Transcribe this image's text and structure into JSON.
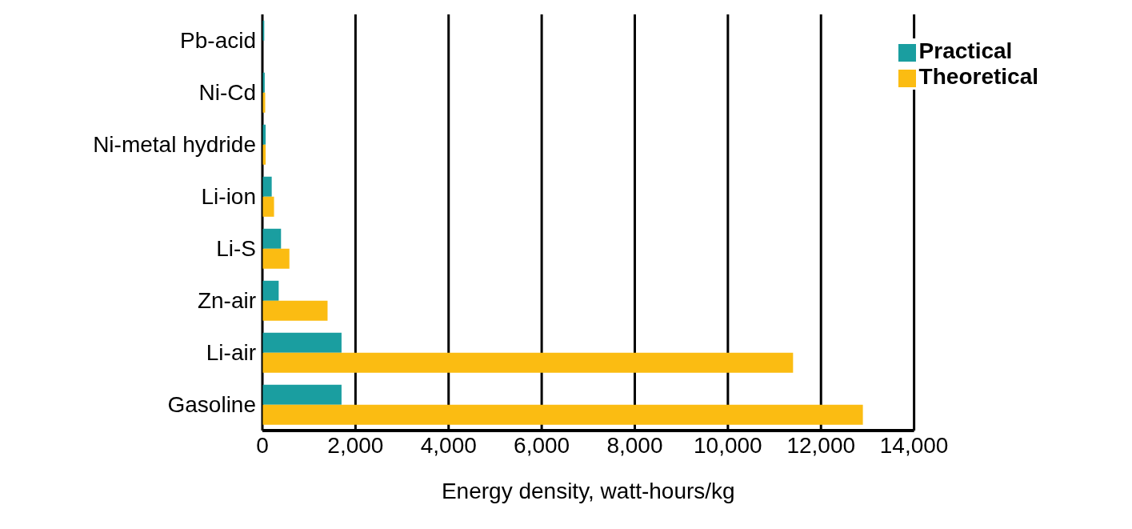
{
  "chart_data": {
    "type": "bar",
    "orientation": "horizontal",
    "xlabel": "Energy density, watt-hours/kg",
    "categories": [
      "Pb-acid",
      "Ni-Cd",
      "Ni-metal hydride",
      "Li-ion",
      "Li-S",
      "Zn-air",
      "Li-air",
      "Gasoline"
    ],
    "series": [
      {
        "name": "Practical",
        "color": "#1a9ea0",
        "values": [
          40,
          50,
          70,
          200,
          400,
          350,
          1700,
          1700
        ]
      },
      {
        "name": "Theoretical",
        "color": "#fbbc12",
        "values": [
          null,
          60,
          70,
          250,
          580,
          1400,
          11400,
          12900
        ]
      }
    ],
    "xlim": [
      0,
      14000
    ],
    "xticks": [
      {
        "value": 0,
        "label": "0"
      },
      {
        "value": 2000,
        "label": "2,000"
      },
      {
        "value": 4000,
        "label": "4,000"
      },
      {
        "value": 6000,
        "label": "6,000"
      },
      {
        "value": 8000,
        "label": "8,000"
      },
      {
        "value": 10000,
        "label": "10,000"
      },
      {
        "value": 12000,
        "label": "12,000"
      },
      {
        "value": 14000,
        "label": "14,000"
      }
    ],
    "grid": "x",
    "legend": "top right"
  }
}
